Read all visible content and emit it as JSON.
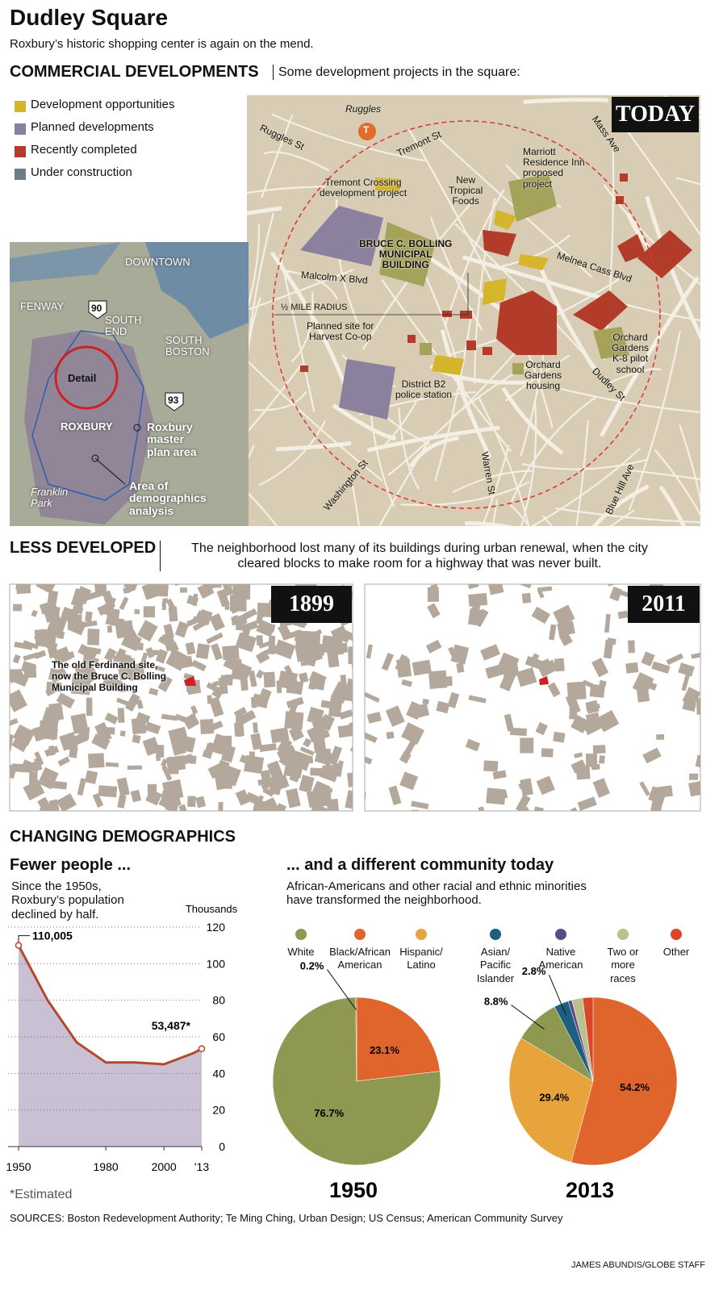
{
  "header": {
    "title": "Dudley Square",
    "subtitle": "Roxbury’s historic shopping center is again on the mend."
  },
  "commercial": {
    "heading": "COMMERCIAL DEVELOPMENTS",
    "description": "Some development projects in the square:",
    "legend": [
      {
        "label": "Development opportunities",
        "color": "#d5b52c"
      },
      {
        "label": "Planned developments",
        "color": "#8b809d"
      },
      {
        "label": "Recently completed",
        "color": "#b33b2a"
      },
      {
        "label": "Under construction",
        "color": "#6e7c86"
      }
    ],
    "map_badge": "TODAY",
    "map_labels": [
      "Ruggles",
      "Ruggles St",
      "Tremont St",
      "Mass Ave",
      "Tremont Crossing\ndevelopment project",
      "New\nTropical\nFoods",
      "Marriott\nResidence Inn\nproposed\nproject",
      "BRUCE C. BOLLING\nMUNICIPAL\nBUILDING",
      "Malcolm X Blvd",
      "Melnea Cass Blvd",
      "½ MILE RADIUS",
      "Planned site for\nHarvest Co-op",
      "Orchard\nGardens\nK-8 pilot\nschool",
      "District B2\npolice station",
      "Orchard\nGardens\nhousing",
      "Dudley St",
      "Washington St",
      "Warren St",
      "Blue Hill Ave",
      "T"
    ]
  },
  "locator": {
    "labels": [
      "DOWNTOWN",
      "FENWAY",
      "90",
      "SOUTH\nEND",
      "SOUTH\nBOSTON",
      "Detail",
      "93",
      "ROXBURY",
      "Roxbury\nmaster\nplan area",
      "Area of\ndemographics\nanalysis",
      "Franklin\nPark"
    ]
  },
  "less_developed": {
    "heading": "LESS DEVELOPED",
    "description": "The neighborhood lost many of its buildings during urban renewal, when the city\ncleared blocks to make room for a highway that was never built.",
    "map_1899": {
      "badge": "1899",
      "note": "The old Ferdinand site,\nnow the Bruce C. Bolling\nMunicipal Building"
    },
    "map_2011": {
      "badge": "2011"
    }
  },
  "demographics": {
    "heading": "CHANGING DEMOGRAPHICS",
    "left_title": "Fewer people ...",
    "left_text": "Since the 1950s,\nRoxbury’s population\ndeclined by half.",
    "right_title": "... and a different community today",
    "right_text": "African-Americans and other racial and ethnic minorities\nhave transformed the neighborhood.",
    "footnote": "*Estimated"
  },
  "chart_data": [
    {
      "type": "line",
      "y_axis_label": "Thousands",
      "x": [
        1950,
        1960,
        1970,
        1980,
        1990,
        2000,
        2010,
        2013
      ],
      "values": [
        110.005,
        80,
        57,
        46,
        46,
        45,
        51,
        53.487
      ],
      "value_labels": [
        "110,005",
        null,
        null,
        null,
        null,
        null,
        null,
        "53,487*"
      ],
      "color": "#b5472d",
      "area_color": "#c9c0d3",
      "xlim": [
        1950,
        2013
      ],
      "ylim": [
        0,
        120
      ],
      "xticks": [
        1950,
        1980,
        2000,
        {
          "value": 2013,
          "label": "'13"
        }
      ],
      "yticks": [
        0,
        20,
        40,
        60,
        80,
        100,
        120
      ],
      "grid": true
    },
    {
      "type": "pie",
      "title": "1950",
      "categories": [
        "White",
        "Black/African\nAmerican",
        "Hispanic/\nLatino",
        "Asian/\nPacific\nIslander",
        "Native\nAmerican",
        "Two or\nmore\nraces",
        "Other"
      ],
      "colors": [
        "#8f9850",
        "#e0652c",
        "#e8a43c",
        "#1d5f80",
        "#5a4a8c",
        "#bcc08a",
        "#d8472c"
      ],
      "values": [
        76.7,
        23.1,
        null,
        null,
        null,
        null,
        0.2
      ],
      "value_labels": [
        "76.7%",
        "23.1%",
        null,
        null,
        null,
        null,
        "0.2%"
      ]
    },
    {
      "type": "pie",
      "title": "2013",
      "values": [
        8.8,
        54.2,
        29.4,
        2.8,
        0.7,
        2.1,
        2.0
      ],
      "value_labels": [
        "8.8%",
        "54.2%",
        "29.4%",
        "2.8%",
        null,
        null,
        null
      ]
    }
  ],
  "footer": {
    "sources": "SOURCES: Boston Redevelopment Authority; Te Ming Ching, Urban Design;  US Census; American Community Survey",
    "credit": "JAMES ABUNDIS/GLOBE STAFF"
  }
}
